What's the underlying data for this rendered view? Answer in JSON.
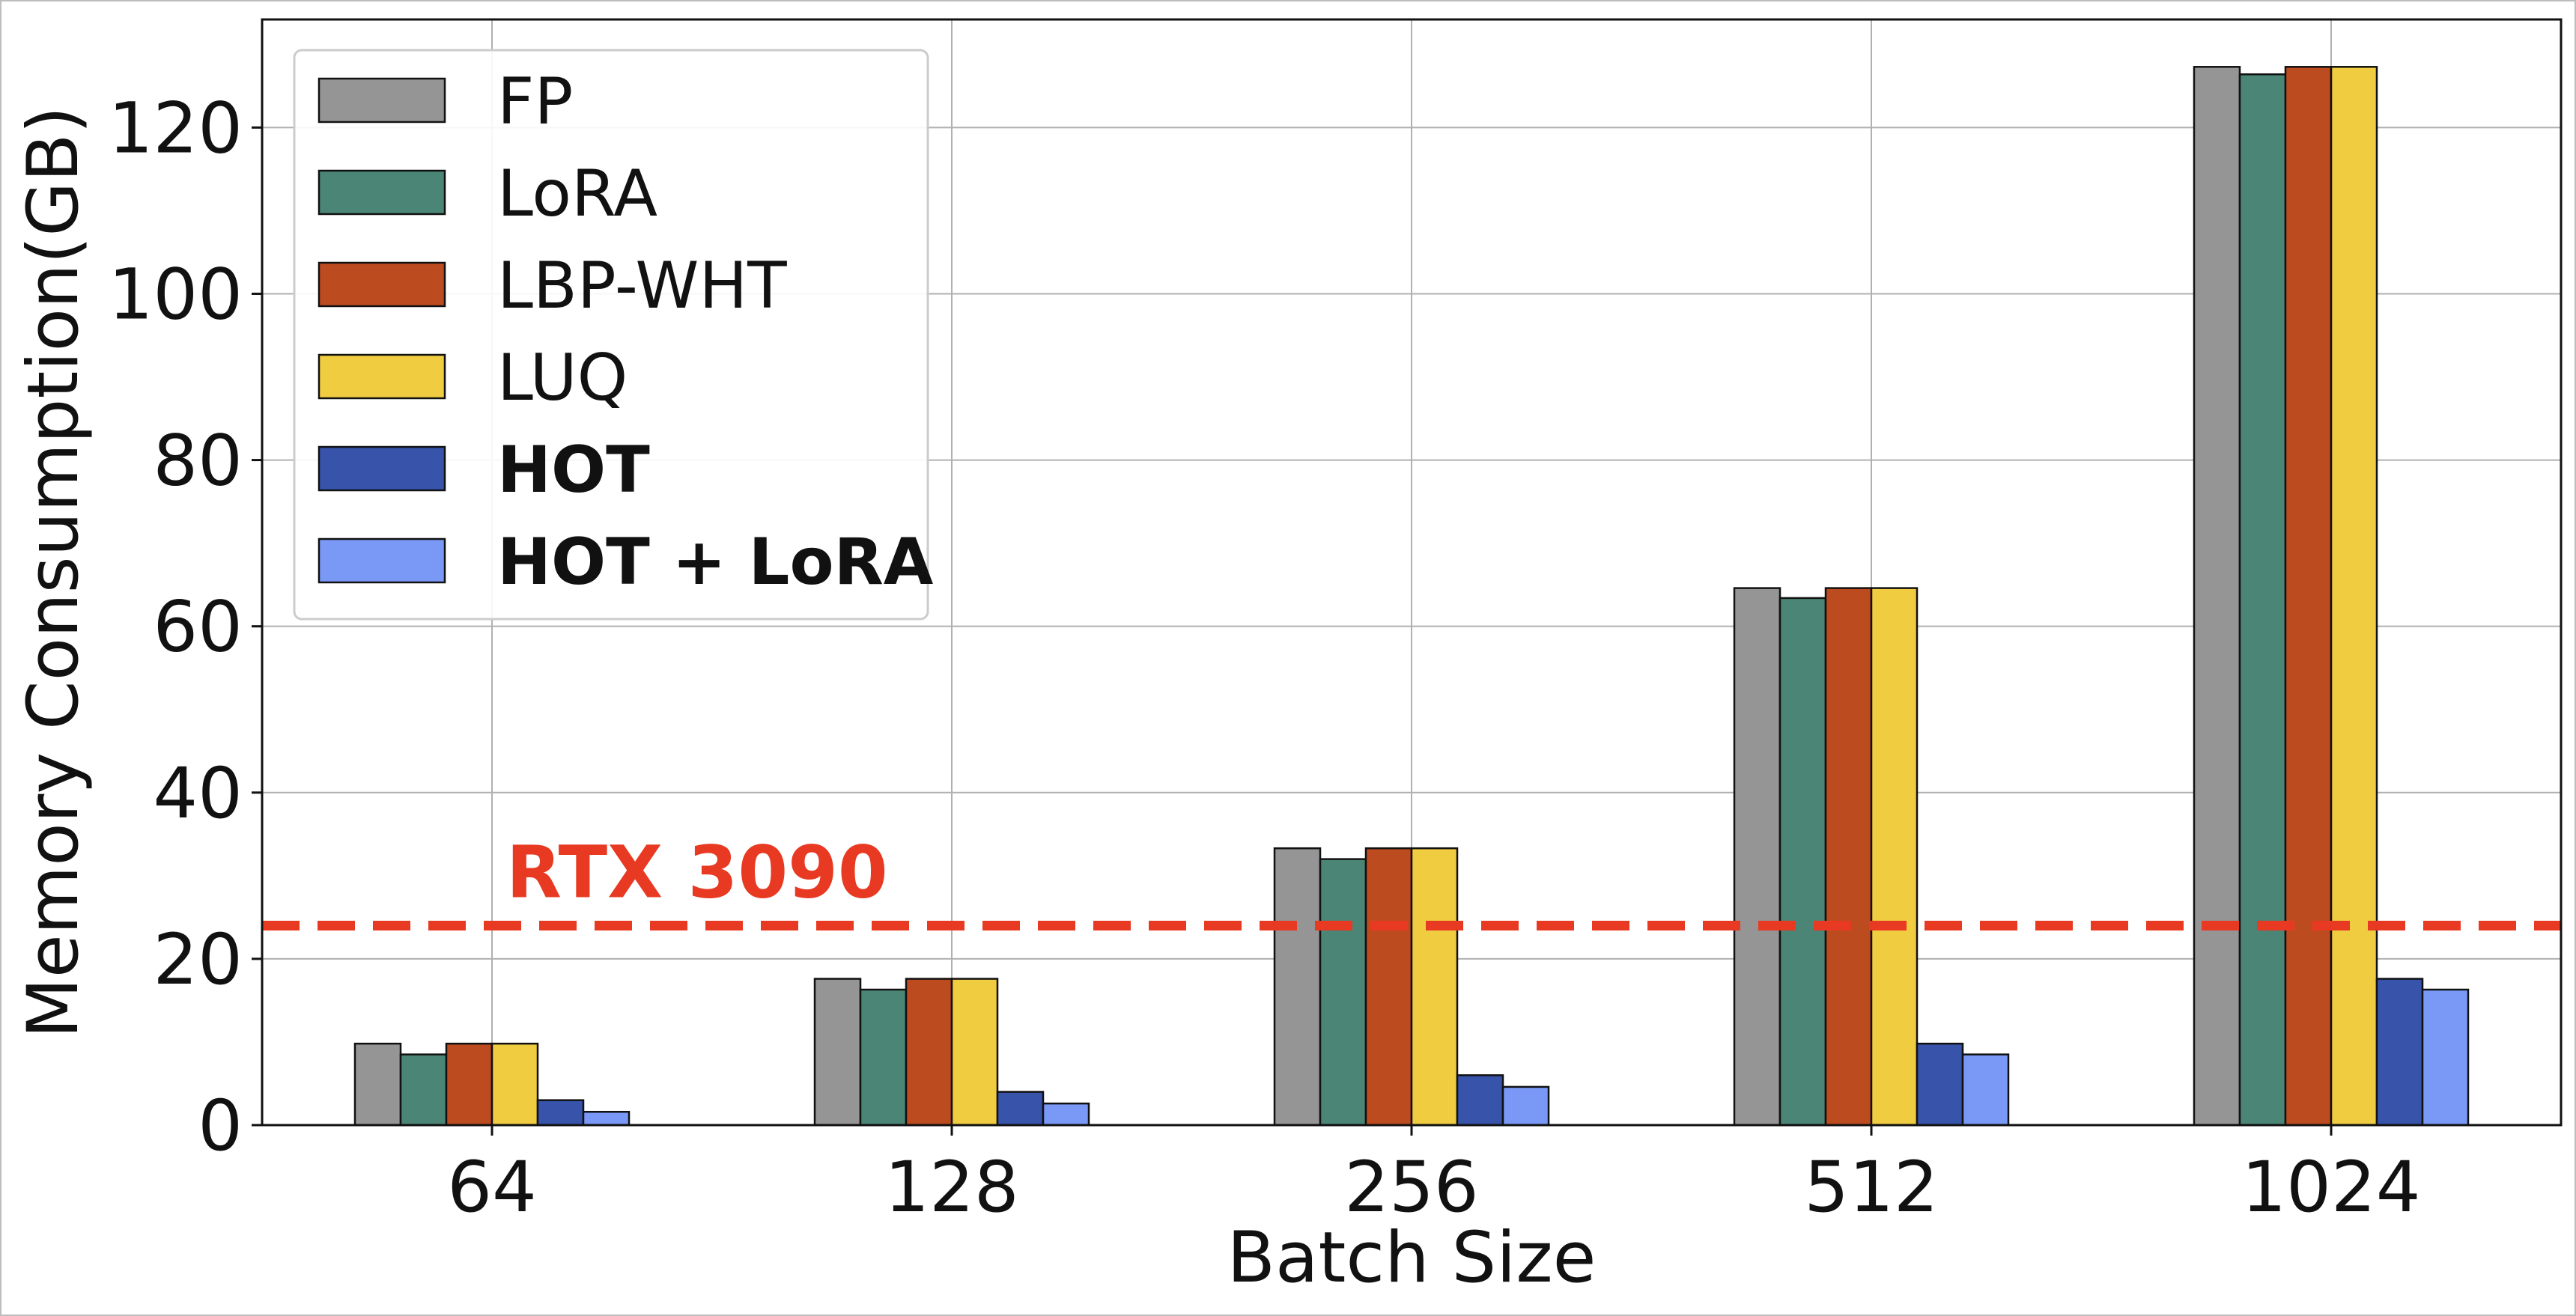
{
  "chart_data": {
    "type": "bar",
    "title": "",
    "xlabel": "Batch Size",
    "ylabel": "Memory Consumption(GB)",
    "categories": [
      "64",
      "128",
      "256",
      "512",
      "1024"
    ],
    "ylim": [
      0,
      133
    ],
    "yticks": [
      0,
      20,
      40,
      60,
      80,
      100,
      120
    ],
    "grid": true,
    "legend_position": "top-left",
    "series": [
      {
        "name": "FP",
        "color": "#959595",
        "bold": false,
        "values": [
          9.8,
          17.6,
          33.3,
          64.6,
          127.3
        ]
      },
      {
        "name": "LoRA",
        "color": "#4a8576",
        "bold": false,
        "values": [
          8.5,
          16.3,
          32.0,
          63.4,
          126.4
        ]
      },
      {
        "name": "LBP-WHT",
        "color": "#bd4b20",
        "bold": false,
        "values": [
          9.8,
          17.6,
          33.3,
          64.6,
          127.3
        ]
      },
      {
        "name": "LUQ",
        "color": "#f0cc41",
        "bold": false,
        "values": [
          9.8,
          17.6,
          33.3,
          64.6,
          127.3
        ]
      },
      {
        "name": "HOT",
        "color": "#3753aa",
        "bold": true,
        "values": [
          3.0,
          4.0,
          6.0,
          9.8,
          17.6
        ]
      },
      {
        "name": "HOT + LoRA",
        "color": "#7a99f6",
        "bold": true,
        "values": [
          1.6,
          2.6,
          4.6,
          8.5,
          16.3
        ]
      }
    ],
    "reference_line": {
      "label": "RTX 3090",
      "value": 24,
      "color": "#e83a22"
    }
  }
}
